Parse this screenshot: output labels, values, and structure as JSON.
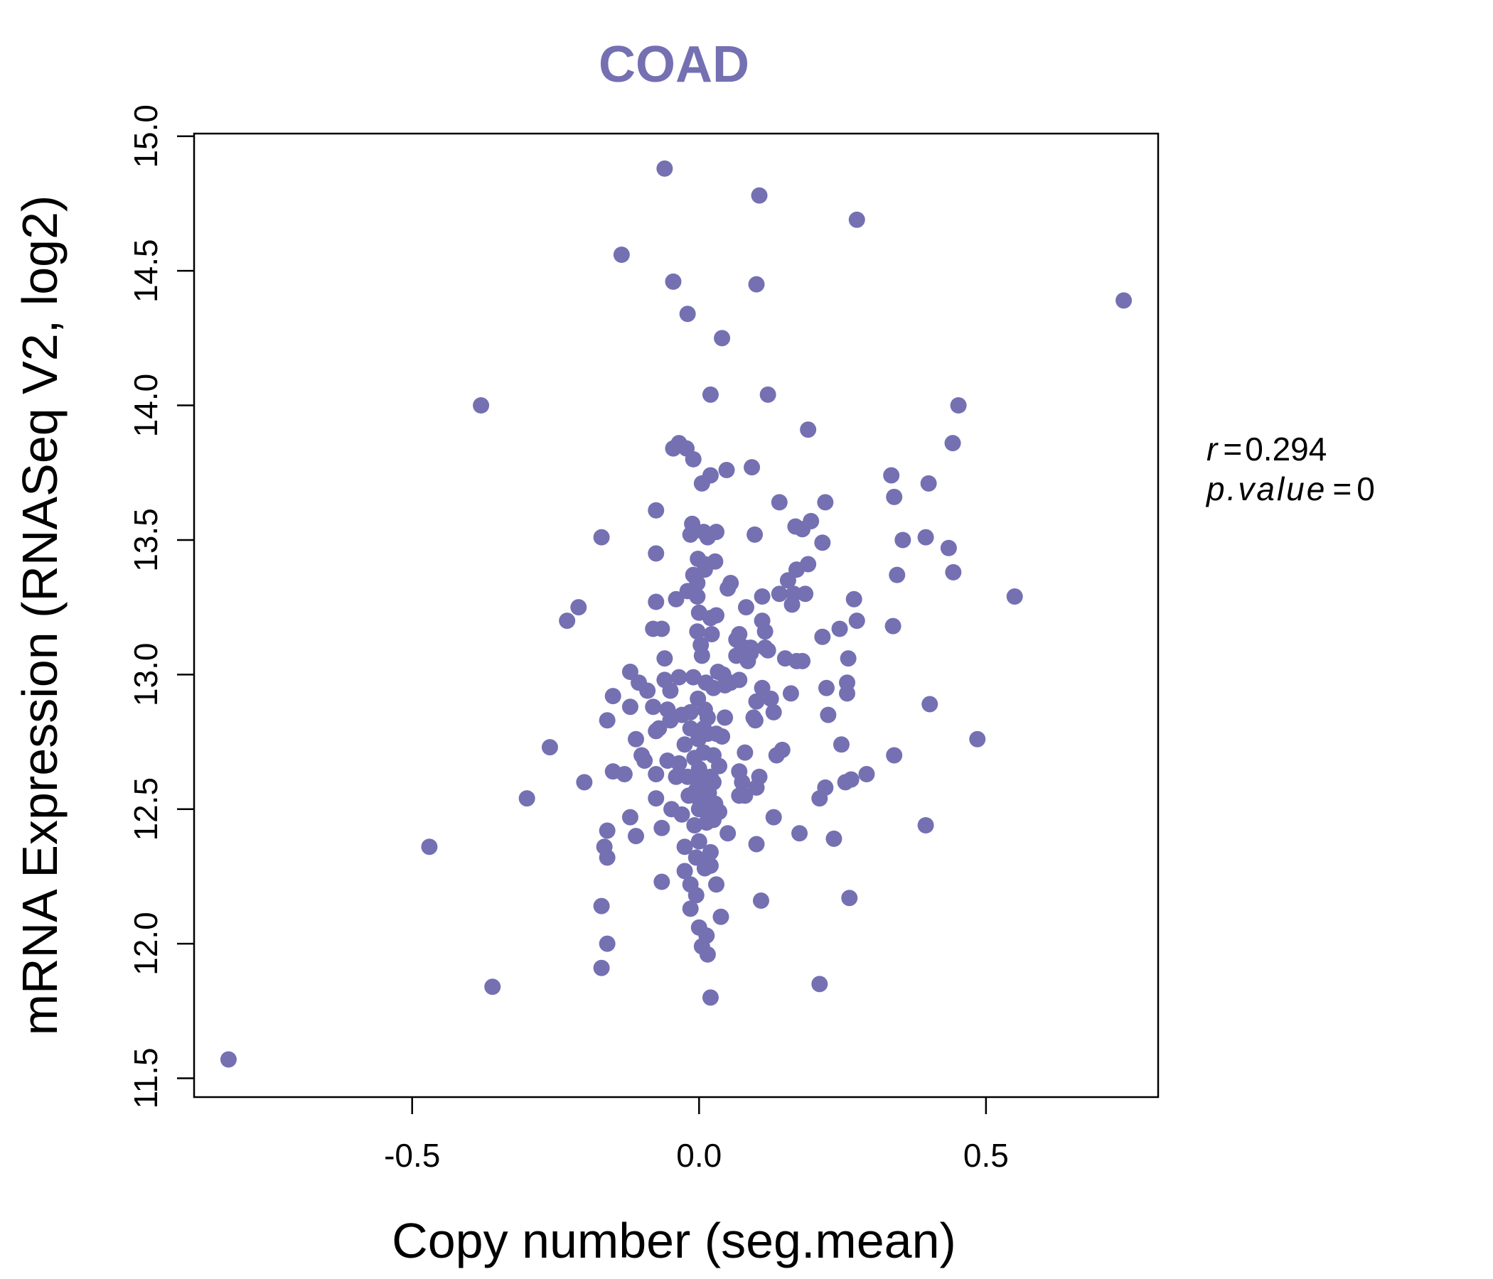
{
  "chart_data": {
    "type": "scatter",
    "title": "COAD",
    "xlabel": "Copy number (seg.mean)",
    "ylabel": "mRNA Expression (RNASeq V2, log2)",
    "xlim": [
      -0.88,
      0.8
    ],
    "ylim": [
      11.43,
      15.01
    ],
    "xticks": [
      -0.5,
      0.0,
      0.5
    ],
    "xtick_labels": [
      "-0.5",
      "0.0",
      "0.5"
    ],
    "yticks": [
      11.5,
      12.0,
      12.5,
      13.0,
      13.5,
      14.0,
      14.5,
      15.0
    ],
    "ytick_labels": [
      "11.5",
      "12.0",
      "12.5",
      "13.0",
      "13.5",
      "14.0",
      "14.5",
      "15.0"
    ],
    "grid": false,
    "point_color": "#7470B2",
    "title_color": "#7470B2",
    "stats": {
      "r_symbol": "r",
      "r_value": "0.294",
      "p_symbol": "p.value",
      "p_value": "0"
    },
    "points": [
      [
        -0.82,
        11.57
      ],
      [
        -0.47,
        12.36
      ],
      [
        -0.38,
        14.0
      ],
      [
        -0.36,
        11.84
      ],
      [
        -0.3,
        12.54
      ],
      [
        -0.26,
        12.73
      ],
      [
        -0.23,
        13.2
      ],
      [
        -0.21,
        13.25
      ],
      [
        -0.2,
        12.6
      ],
      [
        -0.17,
        13.51
      ],
      [
        -0.17,
        12.14
      ],
      [
        -0.17,
        11.91
      ],
      [
        -0.165,
        12.36
      ],
      [
        -0.16,
        12.32
      ],
      [
        -0.16,
        12.0
      ],
      [
        -0.16,
        12.42
      ],
      [
        -0.16,
        12.83
      ],
      [
        -0.15,
        12.92
      ],
      [
        -0.15,
        12.64
      ],
      [
        -0.135,
        14.56
      ],
      [
        -0.13,
        12.63
      ],
      [
        -0.12,
        12.88
      ],
      [
        -0.12,
        12.47
      ],
      [
        -0.12,
        13.01
      ],
      [
        -0.11,
        12.76
      ],
      [
        -0.11,
        12.4
      ],
      [
        -0.105,
        12.97
      ],
      [
        -0.1,
        12.7
      ],
      [
        -0.095,
        12.68
      ],
      [
        -0.09,
        12.94
      ],
      [
        -0.08,
        13.17
      ],
      [
        -0.08,
        12.88
      ],
      [
        -0.075,
        13.27
      ],
      [
        -0.075,
        12.79
      ],
      [
        -0.075,
        12.63
      ],
      [
        -0.075,
        12.54
      ],
      [
        -0.075,
        13.61
      ],
      [
        -0.075,
        13.45
      ],
      [
        -0.07,
        12.8
      ],
      [
        -0.065,
        13.17
      ],
      [
        -0.065,
        12.43
      ],
      [
        -0.065,
        12.23
      ],
      [
        -0.06,
        14.88
      ],
      [
        -0.06,
        13.06
      ],
      [
        -0.06,
        12.98
      ],
      [
        -0.055,
        12.87
      ],
      [
        -0.055,
        12.68
      ],
      [
        -0.05,
        12.94
      ],
      [
        -0.05,
        12.83
      ],
      [
        -0.048,
        12.5
      ],
      [
        -0.045,
        14.46
      ],
      [
        -0.045,
        13.84
      ],
      [
        -0.04,
        12.62
      ],
      [
        -0.04,
        13.28
      ],
      [
        -0.035,
        12.67
      ],
      [
        -0.035,
        12.99
      ],
      [
        -0.035,
        13.86
      ],
      [
        -0.03,
        12.48
      ],
      [
        -0.03,
        12.85
      ],
      [
        -0.025,
        12.36
      ],
      [
        -0.025,
        12.27
      ],
      [
        -0.025,
        12.74
      ],
      [
        -0.022,
        13.84
      ],
      [
        -0.02,
        14.34
      ],
      [
        -0.02,
        12.62
      ],
      [
        -0.02,
        13.31
      ],
      [
        -0.018,
        12.55
      ],
      [
        -0.015,
        12.8
      ],
      [
        -0.015,
        12.22
      ],
      [
        -0.015,
        12.13
      ],
      [
        -0.015,
        13.52
      ],
      [
        -0.015,
        12.86
      ],
      [
        -0.012,
        13.56
      ],
      [
        -0.01,
        13.37
      ],
      [
        -0.01,
        13.8
      ],
      [
        -0.01,
        12.99
      ],
      [
        -0.008,
        12.69
      ],
      [
        -0.008,
        12.44
      ],
      [
        -0.005,
        12.57
      ],
      [
        -0.005,
        12.18
      ],
      [
        -0.005,
        12.32
      ],
      [
        -0.003,
        13.34
      ],
      [
        -0.003,
        13.29
      ],
      [
        -0.003,
        13.16
      ],
      [
        -0.002,
        12.91
      ],
      [
        -0.002,
        13.43
      ],
      [
        -0.001,
        12.76
      ],
      [
        0.0,
        12.06
      ],
      [
        0.0,
        12.5
      ],
      [
        0.0,
        12.65
      ],
      [
        0.0,
        12.58
      ],
      [
        0.0,
        12.38
      ],
      [
        0.0,
        13.23
      ],
      [
        0.002,
        12.53
      ],
      [
        0.003,
        13.11
      ],
      [
        0.005,
        13.07
      ],
      [
        0.005,
        11.99
      ],
      [
        0.005,
        12.62
      ],
      [
        0.005,
        13.71
      ],
      [
        0.008,
        12.8
      ],
      [
        0.008,
        12.71
      ],
      [
        0.008,
        13.53
      ],
      [
        0.01,
        12.6
      ],
      [
        0.01,
        12.28
      ],
      [
        0.01,
        12.31
      ],
      [
        0.01,
        12.87
      ],
      [
        0.01,
        13.41
      ],
      [
        0.01,
        13.39
      ],
      [
        0.012,
        12.97
      ],
      [
        0.013,
        12.03
      ],
      [
        0.013,
        12.45
      ],
      [
        0.013,
        12.52
      ],
      [
        0.015,
        13.51
      ],
      [
        0.015,
        12.84
      ],
      [
        0.015,
        12.78
      ],
      [
        0.015,
        11.96
      ],
      [
        0.017,
        12.56
      ],
      [
        0.017,
        12.48
      ],
      [
        0.02,
        13.74
      ],
      [
        0.02,
        12.62
      ],
      [
        0.02,
        12.34
      ],
      [
        0.02,
        12.29
      ],
      [
        0.02,
        14.04
      ],
      [
        0.02,
        13.21
      ],
      [
        0.02,
        11.8
      ],
      [
        0.022,
        13.15
      ],
      [
        0.025,
        12.46
      ],
      [
        0.025,
        12.7
      ],
      [
        0.025,
        12.6
      ],
      [
        0.025,
        12.95
      ],
      [
        0.028,
        13.42
      ],
      [
        0.028,
        12.52
      ],
      [
        0.03,
        12.22
      ],
      [
        0.03,
        13.53
      ],
      [
        0.03,
        12.78
      ],
      [
        0.03,
        13.22
      ],
      [
        0.033,
        13.01
      ],
      [
        0.035,
        12.66
      ],
      [
        0.035,
        12.49
      ],
      [
        0.038,
        12.1
      ],
      [
        0.04,
        14.25
      ],
      [
        0.04,
        12.77
      ],
      [
        0.042,
        13.0
      ],
      [
        0.045,
        12.84
      ],
      [
        0.045,
        12.96
      ],
      [
        0.048,
        13.76
      ],
      [
        0.05,
        12.41
      ],
      [
        0.05,
        13.32
      ],
      [
        0.055,
        13.34
      ],
      [
        0.055,
        12.97
      ],
      [
        0.065,
        13.07
      ],
      [
        0.065,
        13.13
      ],
      [
        0.07,
        13.15
      ],
      [
        0.07,
        12.55
      ],
      [
        0.07,
        12.64
      ],
      [
        0.07,
        12.98
      ],
      [
        0.075,
        13.1
      ],
      [
        0.075,
        12.6
      ],
      [
        0.08,
        13.1
      ],
      [
        0.08,
        12.71
      ],
      [
        0.08,
        12.55
      ],
      [
        0.082,
        13.25
      ],
      [
        0.085,
        13.05
      ],
      [
        0.09,
        13.08
      ],
      [
        0.09,
        13.1
      ],
      [
        0.092,
        13.77
      ],
      [
        0.095,
        12.84
      ],
      [
        0.097,
        13.52
      ],
      [
        0.098,
        12.83
      ],
      [
        0.1,
        14.45
      ],
      [
        0.1,
        12.58
      ],
      [
        0.1,
        12.37
      ],
      [
        0.1,
        12.9
      ],
      [
        0.105,
        14.78
      ],
      [
        0.105,
        12.62
      ],
      [
        0.108,
        12.16
      ],
      [
        0.11,
        13.29
      ],
      [
        0.11,
        13.2
      ],
      [
        0.11,
        12.95
      ],
      [
        0.115,
        13.1
      ],
      [
        0.115,
        13.16
      ],
      [
        0.12,
        14.04
      ],
      [
        0.12,
        13.09
      ],
      [
        0.125,
        12.91
      ],
      [
        0.13,
        12.86
      ],
      [
        0.13,
        12.47
      ],
      [
        0.135,
        12.7
      ],
      [
        0.14,
        13.64
      ],
      [
        0.14,
        13.3
      ],
      [
        0.145,
        12.72
      ],
      [
        0.15,
        13.06
      ],
      [
        0.155,
        13.35
      ],
      [
        0.16,
        12.93
      ],
      [
        0.162,
        13.26
      ],
      [
        0.165,
        13.3
      ],
      [
        0.168,
        13.55
      ],
      [
        0.17,
        13.05
      ],
      [
        0.17,
        13.39
      ],
      [
        0.175,
        12.41
      ],
      [
        0.18,
        13.54
      ],
      [
        0.18,
        13.05
      ],
      [
        0.185,
        13.3
      ],
      [
        0.19,
        13.41
      ],
      [
        0.19,
        13.91
      ],
      [
        0.195,
        13.57
      ],
      [
        0.21,
        11.85
      ],
      [
        0.21,
        12.54
      ],
      [
        0.215,
        13.14
      ],
      [
        0.215,
        13.49
      ],
      [
        0.22,
        13.64
      ],
      [
        0.22,
        12.58
      ],
      [
        0.222,
        12.95
      ],
      [
        0.225,
        12.85
      ],
      [
        0.235,
        12.39
      ],
      [
        0.245,
        13.17
      ],
      [
        0.248,
        12.74
      ],
      [
        0.255,
        12.6
      ],
      [
        0.258,
        12.97
      ],
      [
        0.258,
        12.93
      ],
      [
        0.26,
        13.06
      ],
      [
        0.262,
        12.17
      ],
      [
        0.265,
        12.61
      ],
      [
        0.27,
        13.28
      ],
      [
        0.275,
        14.69
      ],
      [
        0.275,
        13.2
      ],
      [
        0.292,
        12.63
      ],
      [
        0.335,
        13.74
      ],
      [
        0.338,
        13.18
      ],
      [
        0.34,
        12.7
      ],
      [
        0.34,
        13.66
      ],
      [
        0.345,
        13.37
      ],
      [
        0.355,
        13.5
      ],
      [
        0.395,
        13.51
      ],
      [
        0.395,
        12.44
      ],
      [
        0.4,
        13.71
      ],
      [
        0.402,
        12.89
      ],
      [
        0.435,
        13.47
      ],
      [
        0.442,
        13.86
      ],
      [
        0.443,
        13.38
      ],
      [
        0.452,
        14.0
      ],
      [
        0.485,
        12.76
      ],
      [
        0.55,
        13.29
      ],
      [
        0.74,
        14.39
      ]
    ]
  }
}
